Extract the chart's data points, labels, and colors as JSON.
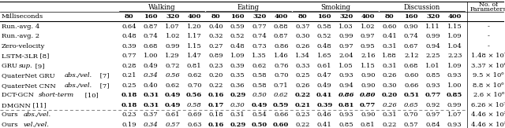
{
  "row_labels": [
    "Run.-avg. 4",
    "Run.-avg. 2",
    "Zero-velocity",
    "LSTM-3LR [8]",
    "GRU sup. [9]",
    "QuaterNet GRU abs./vel. [7]",
    "QuaterNet CNN abs./vel. [7]",
    "DCT-GCN short-term [10]",
    "DMGNN [11]",
    "Ours abs./vel.",
    "Ours vel./vel."
  ],
  "data": [
    [
      "0.64",
      "0.87",
      "1.07",
      "1.20",
      "0.40",
      "0.59",
      "0.77",
      "0.88",
      "0.37",
      "0.58",
      "1.03",
      "1.02",
      "0.60",
      "0.90",
      "1.11",
      "1.15",
      "-"
    ],
    [
      "0.48",
      "0.74",
      "1.02",
      "1.17",
      "0.32",
      "0.52",
      "0.74",
      "0.87",
      "0.30",
      "0.52",
      "0.99",
      "0.97",
      "0.41",
      "0.74",
      "0.99",
      "1.09",
      "-"
    ],
    [
      "0.39",
      "0.68",
      "0.99",
      "1.15",
      "0.27",
      "0.48",
      "0.73",
      "0.86",
      "0.26",
      "0.48",
      "0.97",
      "0.95",
      "0.31",
      "0.67",
      "0.94",
      "1.04",
      "-"
    ],
    [
      "0.77",
      "1.00",
      "1.29",
      "1.47",
      "0.89",
      "1.09",
      "1.35",
      "1.46",
      "1.34",
      "1.65",
      "2.04",
      "2.16",
      "1.88",
      "2.12",
      "2.25",
      "2.23",
      "1.48 × 10⁷"
    ],
    [
      "0.28",
      "0.49",
      "0.72",
      "0.81",
      "0.23",
      "0.39",
      "0.62",
      "0.76",
      "0.33",
      "0.61",
      "1.05",
      "1.15",
      "0.31",
      "0.68",
      "1.01",
      "1.09",
      "3.37 × 10⁶"
    ],
    [
      "0.21",
      "0.34",
      "0.56",
      "0.62",
      "0.20",
      "0.35",
      "0.58",
      "0.70",
      "0.25",
      "0.47",
      "0.93",
      "0.90",
      "0.26",
      "0.60",
      "0.85",
      "0.93",
      "9.5 × 10⁶"
    ],
    [
      "0.25",
      "0.40",
      "0.62",
      "0.70",
      "0.22",
      "0.36",
      "0.58",
      "0.71",
      "0.26",
      "0.49",
      "0.94",
      "0.90",
      "0.30",
      "0.66",
      "0.93",
      "1.00",
      "8.8 × 10⁶"
    ],
    [
      "0.18",
      "0.31",
      "0.49",
      "0.56",
      "0.16",
      "0.29",
      "0.50",
      "0.62",
      "0.22",
      "0.41",
      "0.86",
      "0.80",
      "0.20",
      "0.51",
      "0.77",
      "0.85",
      "2.6 × 10⁶"
    ],
    [
      "0.18",
      "0.31",
      "0.49",
      "0.58",
      "0.17",
      "0.30",
      "0.49",
      "0.59",
      "0.21",
      "0.39",
      "0.81",
      "0.77",
      "0.26",
      "0.65",
      "0.92",
      "0.99",
      "6.26 × 10⁷"
    ],
    [
      "0.23",
      "0.37",
      "0.61",
      "0.69",
      "0.18",
      "0.31",
      "0.54",
      "0.66",
      "0.23",
      "0.46",
      "0.93",
      "0.90",
      "0.31",
      "0.70",
      "0.97",
      "1.07",
      "4.46 × 10⁵"
    ],
    [
      "0.19",
      "0.34",
      "0.57",
      "0.63",
      "0.16",
      "0.29",
      "0.50",
      "0.60",
      "0.22",
      "0.41",
      "0.85",
      "0.81",
      "0.22",
      "0.57",
      "0.84",
      "0.93",
      "4.46 × 10⁵"
    ]
  ],
  "bold_cells": {
    "7": [
      0,
      1,
      2,
      3,
      4,
      5,
      8,
      9,
      10,
      11,
      12,
      13,
      14,
      15
    ],
    "8": [
      0,
      1,
      2,
      4,
      6,
      7,
      8,
      9,
      10,
      11
    ],
    "10": [
      4,
      5,
      6,
      7
    ]
  },
  "italic_cells": {
    "5": [
      1,
      2
    ],
    "7": [
      6,
      7,
      10,
      11
    ],
    "8": [
      3,
      5,
      12,
      13
    ],
    "10": [
      1,
      2
    ]
  },
  "group_labels": [
    "Walking",
    "Eating",
    "Smoking",
    "Discussion"
  ],
  "milliseconds_label": "Milliseconds",
  "no_of_params_line1": "No. of",
  "no_of_params_line2": "Parameters",
  "bg_color": "#ffffff",
  "font_size": 6.0,
  "header_font_size": 6.2
}
